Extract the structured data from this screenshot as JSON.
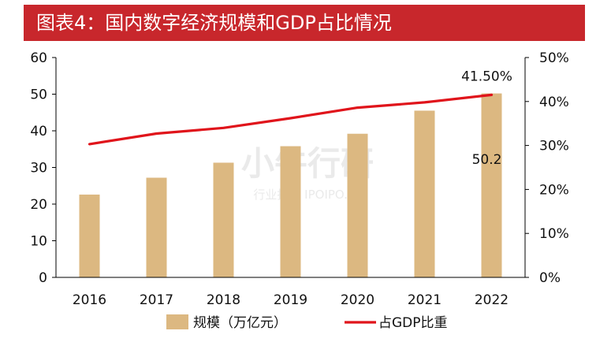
{
  "header": {
    "title": "图表4：国内数字经济规模和GDP占比情况"
  },
  "colors": {
    "bar": "#dcb881",
    "line": "#e0141b",
    "title_bg": "#c8272c"
  },
  "chart_data": {
    "type": "bar",
    "categories": [
      "2016",
      "2017",
      "2018",
      "2019",
      "2020",
      "2021",
      "2022"
    ],
    "series": [
      {
        "name": "规模（万亿元）",
        "type": "bar",
        "axis": "left",
        "values": [
          22.6,
          27.2,
          31.3,
          35.8,
          39.2,
          45.5,
          50.2
        ]
      },
      {
        "name": "占GDP比重",
        "type": "line",
        "axis": "right",
        "values": [
          30.3,
          32.7,
          34.0,
          36.2,
          38.6,
          39.8,
          41.5
        ]
      }
    ],
    "y_left": {
      "ylim": [
        0,
        60
      ],
      "ticks": [
        0,
        10,
        20,
        30,
        40,
        50,
        60
      ],
      "tick_labels": [
        "0",
        "10",
        "20",
        "30",
        "40",
        "50",
        "60"
      ]
    },
    "y_right": {
      "ylim": [
        0,
        50
      ],
      "ticks": [
        0,
        10,
        20,
        30,
        40,
        50
      ],
      "tick_labels": [
        "0%",
        "10%",
        "20%",
        "30%",
        "40%",
        "50%"
      ]
    },
    "annotations": [
      {
        "text": "41.50%",
        "series": "占GDP比重",
        "index": 6
      },
      {
        "text": "50.2",
        "series": "规模（万亿元）",
        "index": 6
      }
    ],
    "legend": {
      "position": "bottom"
    },
    "grid": false
  },
  "watermark": {
    "brand": "小牛行研",
    "sub": "行业报告 IPOIPO.CN"
  }
}
